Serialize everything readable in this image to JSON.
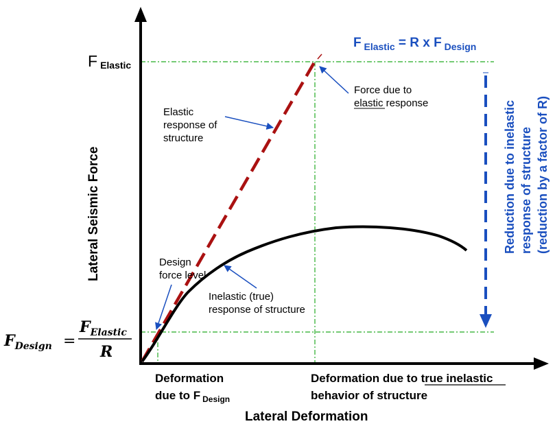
{
  "colors": {
    "axis": "#000000",
    "guide": "#22aa22",
    "elastic": "#aa1111",
    "annotation": "#1a4fbf",
    "reduction": "#1a4fbf"
  },
  "axes": {
    "y_title": "Lateral Seismic Force",
    "x_title": "Lateral Deformation"
  },
  "f_elastic": {
    "main": "F",
    "sub": "Elastic"
  },
  "equation": {
    "prefix": "F",
    "sub": " Elastic",
    "middle": " = R x F",
    "sub2": " Design"
  },
  "f_design": {
    "lhs": "F",
    "lhs_sub": "Design",
    "eq": "=",
    "num": "F",
    "num_sub": "Elastic",
    "den": "R"
  },
  "labels": {
    "elastic_response": [
      "Elastic",
      "response of",
      "structure"
    ],
    "force_elastic": [
      "Force due to",
      "elastic response"
    ],
    "force_elastic_underline": "elastic",
    "design_force": [
      "Design",
      "force level"
    ],
    "inelastic": [
      "Inelastic (true)",
      "response of structure"
    ],
    "deform_design_1": "Deformation",
    "deform_design_2": "due to F",
    "deform_design_sub": "Design",
    "deform_true_1a": "Deformation due to ",
    "deform_true_1b": "true inelastic",
    "deform_true_2": "behavior of structure"
  },
  "reduction": {
    "lines": [
      "Reduction due to inelastic",
      "response of structure",
      "(reduction by a factor of R)"
    ]
  }
}
